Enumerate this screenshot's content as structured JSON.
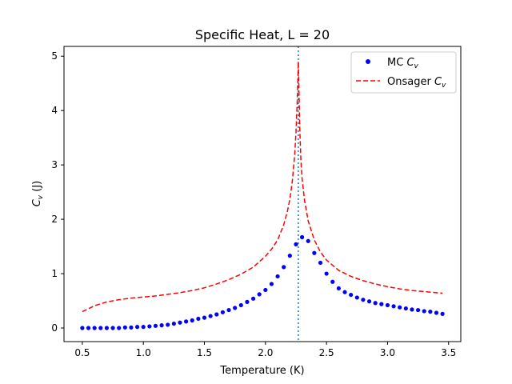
{
  "chart_data": {
    "type": "scatter",
    "title": "Specific Heat, L = 20",
    "xlabel": "Temperature (K)",
    "ylabel_main": "C",
    "ylabel_sub": "v",
    "ylabel_unit": " (J)",
    "xlim": [
      0.35,
      3.6
    ],
    "ylim": [
      -0.25,
      5.18
    ],
    "xticks": [
      0.5,
      1.0,
      1.5,
      2.0,
      2.5,
      3.0,
      3.5
    ],
    "xtick_labels": [
      "0.5",
      "1.0",
      "1.5",
      "2.0",
      "2.5",
      "3.0",
      "3.5"
    ],
    "yticks": [
      0,
      1,
      2,
      3,
      4,
      5
    ],
    "ytick_labels": [
      "0",
      "1",
      "2",
      "3",
      "4",
      "5"
    ],
    "grid": false,
    "legend_position": "top-right",
    "critical_temperature": 2.269,
    "series": [
      {
        "name": "MC",
        "name_sub": "v",
        "name_main": "C",
        "style": "dots",
        "color": "#0000ff",
        "x": [
          0.5,
          0.55,
          0.6,
          0.65,
          0.7,
          0.75,
          0.8,
          0.85,
          0.9,
          0.95,
          1.0,
          1.05,
          1.1,
          1.15,
          1.2,
          1.25,
          1.3,
          1.35,
          1.4,
          1.45,
          1.5,
          1.55,
          1.6,
          1.65,
          1.7,
          1.75,
          1.8,
          1.85,
          1.9,
          1.95,
          2.0,
          2.05,
          2.1,
          2.15,
          2.2,
          2.25,
          2.3,
          2.35,
          2.4,
          2.45,
          2.5,
          2.55,
          2.6,
          2.65,
          2.7,
          2.75,
          2.8,
          2.85,
          2.9,
          2.95,
          3.0,
          3.05,
          3.1,
          3.15,
          3.2,
          3.25,
          3.3,
          3.35,
          3.4,
          3.45
        ],
        "y": [
          0.0,
          0.0,
          0.0,
          0.0,
          0.0,
          0.0,
          0.0,
          0.01,
          0.01,
          0.02,
          0.02,
          0.03,
          0.04,
          0.05,
          0.06,
          0.08,
          0.1,
          0.12,
          0.14,
          0.17,
          0.19,
          0.22,
          0.25,
          0.29,
          0.33,
          0.37,
          0.42,
          0.48,
          0.54,
          0.62,
          0.7,
          0.81,
          0.95,
          1.12,
          1.33,
          1.54,
          1.67,
          1.6,
          1.38,
          1.2,
          1.0,
          0.85,
          0.73,
          0.66,
          0.61,
          0.56,
          0.52,
          0.49,
          0.46,
          0.44,
          0.42,
          0.4,
          0.38,
          0.36,
          0.34,
          0.33,
          0.31,
          0.3,
          0.28,
          0.26
        ]
      },
      {
        "name": "Onsager",
        "name_sub": "v",
        "name_main": "C",
        "style": "dashed",
        "color": "#ff0000",
        "x": [
          0.5,
          0.6,
          0.7,
          0.8,
          0.9,
          1.0,
          1.1,
          1.2,
          1.3,
          1.4,
          1.5,
          1.6,
          1.7,
          1.8,
          1.9,
          2.0,
          2.05,
          2.1,
          2.15,
          2.18,
          2.2,
          2.22,
          2.24,
          2.25,
          2.26,
          2.265,
          2.269,
          2.273,
          2.28,
          2.29,
          2.3,
          2.32,
          2.35,
          2.4,
          2.45,
          2.5,
          2.6,
          2.7,
          2.8,
          2.9,
          3.0,
          3.1,
          3.2,
          3.3,
          3.4,
          3.45
        ],
        "y": [
          0.3,
          0.41,
          0.48,
          0.52,
          0.55,
          0.57,
          0.59,
          0.62,
          0.65,
          0.69,
          0.74,
          0.81,
          0.89,
          0.99,
          1.12,
          1.32,
          1.45,
          1.62,
          1.9,
          2.15,
          2.37,
          2.7,
          3.2,
          3.6,
          4.15,
          4.55,
          4.9,
          4.55,
          3.75,
          3.1,
          2.75,
          2.35,
          1.97,
          1.62,
          1.4,
          1.25,
          1.06,
          0.95,
          0.87,
          0.81,
          0.76,
          0.72,
          0.69,
          0.67,
          0.65,
          0.64
        ]
      }
    ]
  }
}
